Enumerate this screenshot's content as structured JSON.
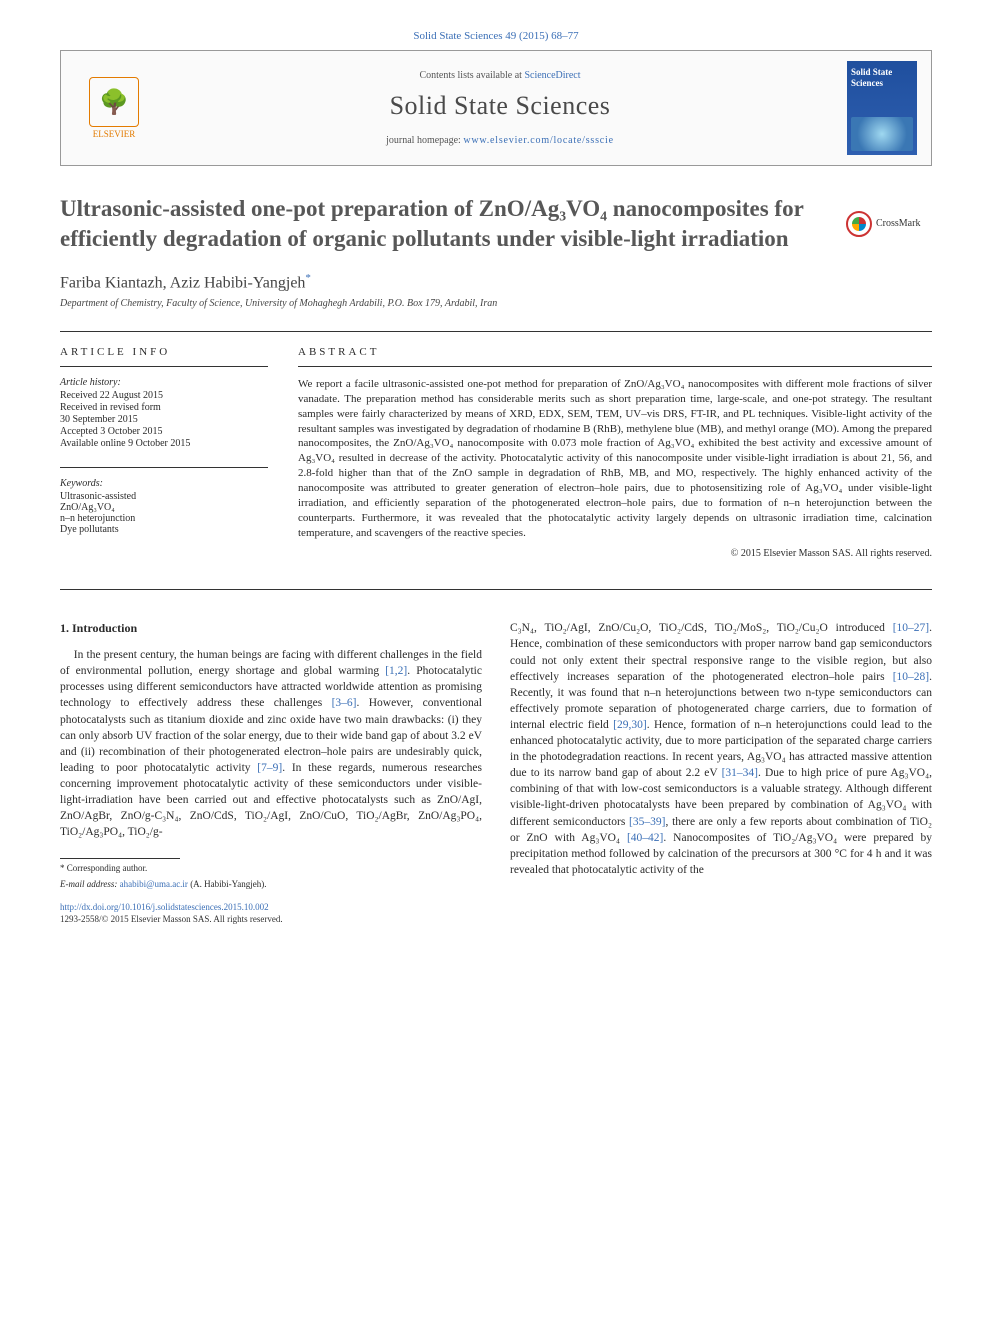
{
  "top_reference": "Solid State Sciences 49 (2015) 68–77",
  "banner": {
    "publisher_name": "ELSEVIER",
    "contents_line_prefix": "Contents lists available at ",
    "contents_line_link": "ScienceDirect",
    "journal_name": "Solid State Sciences",
    "homepage_prefix": "journal homepage: ",
    "homepage_url": "www.elsevier.com/locate/ssscie",
    "cover_title": "Solid State Sciences"
  },
  "crossmark_label": "CrossMark",
  "title": "Ultrasonic-assisted one-pot preparation of ZnO/Ag₃VO₄ nanocomposites for efficiently degradation of organic pollutants under visible-light irradiation",
  "authors": "Fariba Kiantazh, Aziz Habibi-Yangjeh",
  "affiliation": "Department of Chemistry, Faculty of Science, University of Mohaghegh Ardabili, P.O. Box 179, Ardabil, Iran",
  "article_info_heading": "ARTICLE INFO",
  "abstract_heading": "ABSTRACT",
  "history": {
    "label": "Article history:",
    "received": "Received 22 August 2015",
    "revised_l1": "Received in revised form",
    "revised_l2": "30 September 2015",
    "accepted": "Accepted 3 October 2015",
    "online": "Available online 9 October 2015"
  },
  "keywords": {
    "label": "Keywords:",
    "items": [
      "Ultrasonic-assisted",
      "ZnO/Ag₃VO₄",
      "n–n heterojunction",
      "Dye pollutants"
    ]
  },
  "abstract_text": "We report a facile ultrasonic-assisted one-pot method for preparation of ZnO/Ag₃VO₄ nanocomposites with different mole fractions of silver vanadate. The preparation method has considerable merits such as short preparation time, large-scale, and one-pot strategy. The resultant samples were fairly characterized by means of XRD, EDX, SEM, TEM, UV–vis DRS, FT-IR, and PL techniques. Visible-light activity of the resultant samples was investigated by degradation of rhodamine B (RhB), methylene blue (MB), and methyl orange (MO). Among the prepared nanocomposites, the ZnO/Ag₃VO₄ nanocomposite with 0.073 mole fraction of Ag₃VO₄ exhibited the best activity and excessive amount of Ag₃VO₄ resulted in decrease of the activity. Photocatalytic activity of this nanocomposite under visible-light irradiation is about 21, 56, and 2.8-fold higher than that of the ZnO sample in degradation of RhB, MB, and MO, respectively. The highly enhanced activity of the nanocomposite was attributed to greater generation of electron–hole pairs, due to photosensitizing role of Ag₃VO₄ under visible-light irradiation, and efficiently separation of the photogenerated electron–hole pairs, due to formation of n–n heterojunction between the counterparts. Furthermore, it was revealed that the photocatalytic activity largely depends on ultrasonic irradiation time, calcination temperature, and scavengers of the reactive species.",
  "abstract_copyright": "© 2015 Elsevier Masson SAS. All rights reserved.",
  "intro_heading": "1. Introduction",
  "intro_col1": "In the present century, the human beings are facing with different challenges in the field of environmental pollution, energy shortage and global warming [1,2]. Photocatalytic processes using different semiconductors have attracted worldwide attention as promising technology to effectively address these challenges [3–6]. However, conventional photocatalysts such as titanium dioxide and zinc oxide have two main drawbacks: (i) they can only absorb UV fraction of the solar energy, due to their wide band gap of about 3.2 eV and (ii) recombination of their photogenerated electron–hole pairs are undesirably quick, leading to poor photocatalytic activity [7–9]. In these regards, numerous researches concerning improvement photocatalytic activity of these semiconductors under visible-light-irradiation have been carried out and effective photocatalysts such as ZnO/AgI, ZnO/AgBr, ZnO/g-C₃N₄, ZnO/CdS, TiO₂/AgI, ZnO/CuO, TiO₂/AgBr, ZnO/Ag₃PO₄, TiO₂/Ag₃PO₄, TiO₂/g-",
  "intro_col2": "C₃N₄, TiO₂/AgI, ZnO/Cu₂O, TiO₂/CdS, TiO₂/MoS₂, TiO₂/Cu₂O introduced [10–27]. Hence, combination of these semiconductors with proper narrow band gap semiconductors could not only extent their spectral responsive range to the visible region, but also effectively increases separation of the photogenerated electron–hole pairs [10–28]. Recently, it was found that n–n heterojunctions between two n-type semiconductors can effectively promote separation of photogenerated charge carriers, due to formation of internal electric field [29,30]. Hence, formation of n–n heterojunctions could lead to the enhanced photocatalytic activity, due to more participation of the separated charge carriers in the photodegradation reactions. In recent years, Ag₃VO₄ has attracted massive attention due to its narrow band gap of about 2.2 eV [31–34]. Due to high price of pure Ag₃VO₄, combining of that with low-cost semiconductors is a valuable strategy. Although different visible-light-driven photocatalysts have been prepared by combination of Ag₃VO₄ with different semiconductors [35–39], there are only a few reports about combination of TiO₂ or ZnO with Ag₃VO₄ [40–42]. Nanocomposites of TiO₂/Ag₃VO₄ were prepared by precipitation method followed by calcination of the precursors at 300 °C for 4 h and it was revealed that photocatalytic activity of the",
  "footnote": {
    "corr": "* Corresponding author.",
    "email_label": "E-mail address: ",
    "email": "ahabibi@uma.ac.ir",
    "email_suffix": " (A. Habibi-Yangjeh)."
  },
  "doi": {
    "url": "http://dx.doi.org/10.1016/j.solidstatesciences.2015.10.002",
    "issn_line": "1293-2558/© 2015 Elsevier Masson SAS. All rights reserved."
  },
  "citation_refs": [
    "[1,2]",
    "[3–6]",
    "[7–9]",
    "[10–27]",
    "[10–28]",
    "[29,30]",
    "[31–34]",
    "[35–39]",
    "[40–42]"
  ],
  "colors": {
    "link": "#3b6fb6",
    "text": "#2a2a2a",
    "heading_gray": "#575757",
    "orange": "#e37b00",
    "cover_blue": "#1f4f9e"
  },
  "typography": {
    "body_pt": 11.5,
    "title_pt": 23,
    "journal_name_pt": 26,
    "small_pt": 10,
    "footnote_pt": 9
  }
}
